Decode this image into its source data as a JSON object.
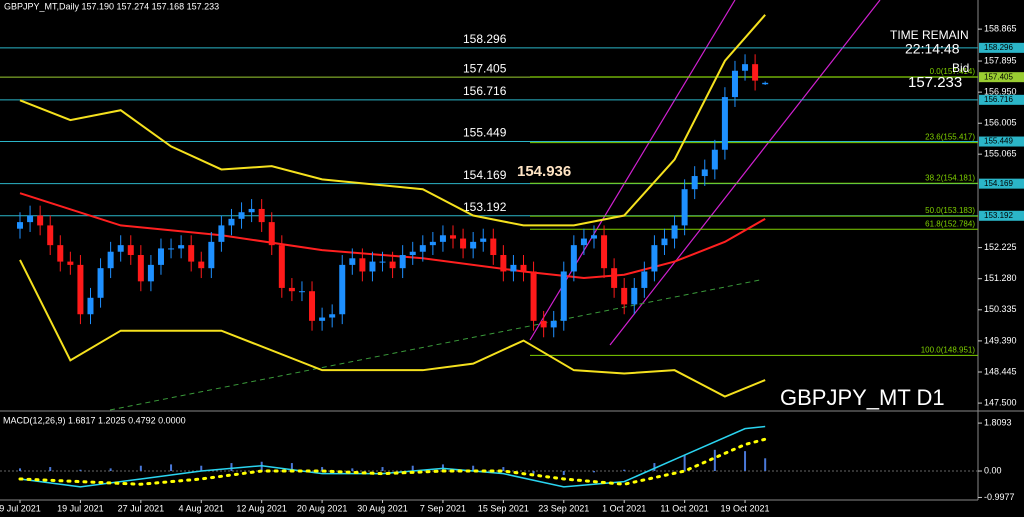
{
  "chart_data": {
    "type": "candlestick",
    "title": "GBPJPY_MT,Daily  157.190 157.274 157.168 157.233",
    "categories": [
      "9 Jul 2021",
      null,
      null,
      null,
      null,
      null,
      "19 Jul 2021",
      null,
      null,
      null,
      null,
      null,
      "27 Jul 2021",
      null,
      null,
      null,
      null,
      null,
      "4 Aug 2021",
      null,
      null,
      null,
      null,
      null,
      "12 Aug 2021",
      null,
      null,
      null,
      null,
      null,
      "20 Aug 2021",
      null,
      null,
      null,
      null,
      null,
      "30 Aug 2021",
      null,
      null,
      null,
      null,
      null,
      "7 Sep 2021",
      null,
      null,
      null,
      null,
      null,
      "15 Sep 2021",
      null,
      null,
      null,
      null,
      null,
      "23 Sep 2021",
      null,
      null,
      null,
      null,
      null,
      "1 Oct 2021",
      null,
      null,
      null,
      null,
      null,
      "11 Oct 2021",
      null,
      null,
      null,
      null,
      null,
      "19 Oct 2021",
      null,
      null
    ],
    "open": [
      152.8,
      153.0,
      153.2,
      152.9,
      152.3,
      151.8,
      151.7,
      150.2,
      150.7,
      151.6,
      152.1,
      152.3,
      152.0,
      151.2,
      151.7,
      152.2,
      152.2,
      152.3,
      151.8,
      151.6,
      152.4,
      152.9,
      153.1,
      153.3,
      153.4,
      153.0,
      152.3,
      151.0,
      150.9,
      150.9,
      150.0,
      150.1,
      150.2,
      151.7,
      151.9,
      151.5,
      151.8,
      151.8,
      151.6,
      152.0,
      152.1,
      152.3,
      152.4,
      152.6,
      152.5,
      152.2,
      152.4,
      152.5,
      152.0,
      151.5,
      151.7,
      151.5,
      150.0,
      149.8,
      150.0,
      151.5,
      152.3,
      152.5,
      152.6,
      151.6,
      151.0,
      150.5,
      151.0,
      151.5,
      152.3,
      152.5,
      152.9,
      154.0,
      154.4,
      154.6,
      155.2,
      156.8,
      157.6,
      157.8,
      157.19
    ],
    "high": [
      153.3,
      153.5,
      153.5,
      153.2,
      152.6,
      152.1,
      152.0,
      151.0,
      151.9,
      152.4,
      152.6,
      152.6,
      152.3,
      152.0,
      152.5,
      152.5,
      152.6,
      152.6,
      152.1,
      152.7,
      153.2,
      153.4,
      153.6,
      153.7,
      153.7,
      153.3,
      152.6,
      151.3,
      151.2,
      151.2,
      150.4,
      150.5,
      152.0,
      152.2,
      152.2,
      152.1,
      152.1,
      152.1,
      152.3,
      152.4,
      152.6,
      152.7,
      152.9,
      152.9,
      152.8,
      152.7,
      152.8,
      152.8,
      152.3,
      152.0,
      152.0,
      151.8,
      150.3,
      150.3,
      151.8,
      152.6,
      152.8,
      152.9,
      152.9,
      151.9,
      151.3,
      151.3,
      151.8,
      152.6,
      152.8,
      153.2,
      154.3,
      154.7,
      154.9,
      155.5,
      157.1,
      157.9,
      158.1,
      158.1,
      157.274
    ],
    "low": [
      152.5,
      152.7,
      152.6,
      152.0,
      151.5,
      151.4,
      149.9,
      149.9,
      150.4,
      151.3,
      151.8,
      151.7,
      150.9,
      150.9,
      151.4,
      151.9,
      151.9,
      151.5,
      151.3,
      151.3,
      152.1,
      152.6,
      152.8,
      153.0,
      152.7,
      152.0,
      150.7,
      150.6,
      150.6,
      149.7,
      149.7,
      149.8,
      149.9,
      151.4,
      151.2,
      151.2,
      151.5,
      151.3,
      151.3,
      151.7,
      151.8,
      152.0,
      152.1,
      152.2,
      151.9,
      151.9,
      152.1,
      151.7,
      151.2,
      151.2,
      151.2,
      149.7,
      149.5,
      149.5,
      149.7,
      151.2,
      152.0,
      152.2,
      151.3,
      150.7,
      150.2,
      150.2,
      150.7,
      151.2,
      152.0,
      152.2,
      152.6,
      153.7,
      154.1,
      154.3,
      154.9,
      156.5,
      157.3,
      157.0,
      157.168
    ],
    "close": [
      153.0,
      153.2,
      152.9,
      152.3,
      151.8,
      151.7,
      150.2,
      150.7,
      151.6,
      152.1,
      152.3,
      152.0,
      151.2,
      151.7,
      152.2,
      152.2,
      152.3,
      151.8,
      151.6,
      152.4,
      152.9,
      153.1,
      153.3,
      153.4,
      153.0,
      152.3,
      151.0,
      150.9,
      150.9,
      150.0,
      150.1,
      150.2,
      151.7,
      151.9,
      151.5,
      151.8,
      151.8,
      151.6,
      152.0,
      152.1,
      152.3,
      152.4,
      152.6,
      152.5,
      152.2,
      152.4,
      152.5,
      152.0,
      151.5,
      151.7,
      151.5,
      150.0,
      149.8,
      150.0,
      151.5,
      152.3,
      152.5,
      152.6,
      151.6,
      151.0,
      150.5,
      151.0,
      151.5,
      152.3,
      152.5,
      152.9,
      154.0,
      154.4,
      154.6,
      155.2,
      156.8,
      157.6,
      157.8,
      157.3,
      157.233
    ],
    "up_color": "#1e90ff",
    "down_color": "#ff1a1a",
    "ylim": [
      147.29,
      159.75
    ],
    "yticks": [
      158.865,
      157.895,
      {
        "value": 156.95,
        "label": "156.950"
      },
      156.005,
      155.065,
      152.225,
      {
        "value": 151.28,
        "label": "151.280"
      },
      150.335,
      {
        "value": 149.39,
        "label": "149.390"
      },
      148.445,
      {
        "value": 147.5,
        "label": "147.500"
      }
    ],
    "overlays": [
      {
        "color": "#f5e11e",
        "x": [
          0,
          5,
          10,
          15,
          20,
          25,
          30,
          40,
          45,
          50,
          55,
          60,
          65,
          70,
          74
        ],
        "values": [
          156.7,
          156.1,
          156.4,
          155.3,
          154.6,
          154.7,
          154.3,
          154.0,
          153.2,
          152.9,
          152.9,
          153.2,
          154.9,
          157.9,
          159.3
        ]
      },
      {
        "color": "#f5e11e",
        "x": [
          0,
          5,
          10,
          20,
          30,
          40,
          45,
          50,
          55,
          60,
          65,
          70,
          74
        ],
        "values": [
          151.85,
          148.8,
          149.7,
          149.7,
          148.5,
          148.5,
          148.7,
          149.4,
          148.5,
          148.4,
          148.5,
          147.7,
          148.2
        ]
      },
      {
        "color": "#ff2020",
        "x": [
          0,
          10,
          20,
          30,
          40,
          50,
          56,
          60,
          65,
          70,
          74
        ],
        "values": [
          153.88,
          152.9,
          152.6,
          152.15,
          151.9,
          151.5,
          151.3,
          151.4,
          151.8,
          152.4,
          153.1
        ]
      }
    ],
    "levels": [
      {
        "value": 158.296,
        "color": "#2bb5c8"
      },
      {
        "value": 157.405,
        "color": "#9acd32"
      },
      {
        "value": 156.716,
        "color": "#2bb5c8"
      },
      {
        "value": 155.449,
        "color": "#2bb5c8"
      },
      {
        "value": 154.169,
        "color": "#2bb5c8"
      },
      {
        "value": 153.192,
        "color": "#2bb5c8"
      }
    ],
    "fib_color": "#7fd000",
    "fib_levels": [
      {
        "value": 157.414,
        "label": "0.0(157.414)"
      },
      {
        "value": 155.417,
        "label": "23.6(155.417)"
      },
      {
        "value": 154.181,
        "label": "38.2(154.181)"
      },
      {
        "value": 153.183,
        "label": "50.0(153.183)"
      },
      {
        "value": 152.784,
        "label": "61.8(152.784)"
      },
      {
        "value": 148.951,
        "label": "100.0(148.951)"
      }
    ],
    "annotations": {
      "time_label": "TIME REMAIN",
      "time": "22:14:48",
      "bid_label": "Bid",
      "bid": "157.233",
      "highlight": "154.936",
      "symbol": "GBPJPY_MT D1"
    },
    "macd": {
      "title": "MACD(12,26,9) 1.6817 1.2025 0.4792 0.0000",
      "ylim": [
        -1.094,
        2.19
      ],
      "yticks": [
        1.8093,
        {
          "value": 0,
          "label": "0.00"
        },
        -0.9977
      ],
      "histogram": {
        "color": "#4a78d8",
        "x": [
          0,
          3,
          6,
          9,
          12,
          15,
          18,
          21,
          24,
          27,
          30,
          33,
          36,
          39,
          42,
          45,
          48,
          51,
          54,
          57,
          60,
          63,
          66,
          69,
          72,
          74
        ],
        "values": [
          0.1,
          0.15,
          0.05,
          0.1,
          0.2,
          0.25,
          0.2,
          0.3,
          0.35,
          0.3,
          0.15,
          0.1,
          0.15,
          0.2,
          0.25,
          0.2,
          0.15,
          -0.1,
          -0.15,
          -0.05,
          0.05,
          0.3,
          0.6,
          0.8,
          0.75,
          0.48
        ]
      },
      "lines": [
        {
          "color": "#2ad4f0",
          "dash": false,
          "x": [
            0,
            6,
            12,
            18,
            24,
            30,
            36,
            42,
            48,
            54,
            60,
            66,
            72,
            74
          ],
          "values": [
            -0.3,
            -0.6,
            -0.3,
            0.0,
            0.2,
            -0.1,
            -0.1,
            0.1,
            -0.1,
            -0.6,
            -0.4,
            0.6,
            1.6,
            1.68
          ]
        },
        {
          "color": "#ffff00",
          "dash": true,
          "x": [
            0,
            6,
            12,
            18,
            24,
            30,
            36,
            42,
            48,
            54,
            60,
            66,
            72,
            74
          ],
          "values": [
            -0.3,
            -0.4,
            -0.5,
            -0.3,
            0.0,
            0.0,
            -0.1,
            0.0,
            0.0,
            -0.3,
            -0.5,
            0.0,
            1.0,
            1.2
          ]
        }
      ]
    }
  }
}
